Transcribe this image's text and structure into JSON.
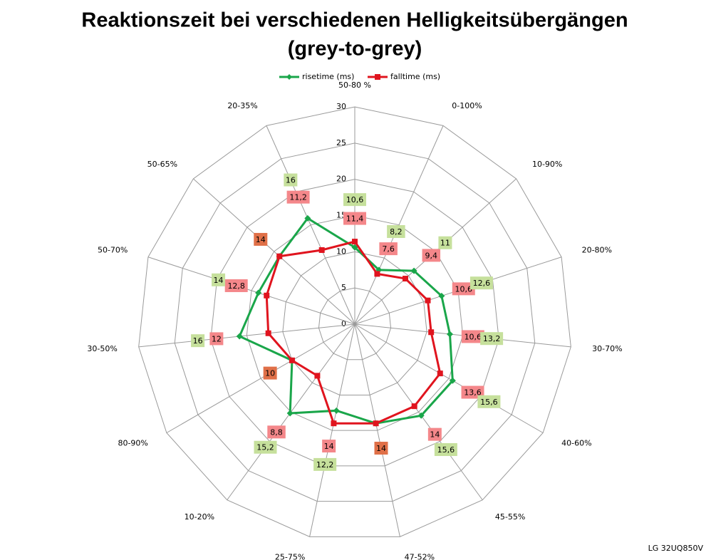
{
  "chart_data": {
    "type": "radar",
    "title": [
      "Reaktionszeit bei verschiedenen Helligkeitsübergängen",
      "(grey-to-grey)"
    ],
    "source": "LG 32UQ850V",
    "categories": [
      "50-80 %",
      "0-100%",
      "10-90%",
      "20-80%",
      "30-70%",
      "40-60%",
      "45-55%",
      "47-52%",
      "25-75%",
      "10-20%",
      "80-90%",
      "30-50%",
      "50-70%",
      "50-65%",
      "20-35%"
    ],
    "ylim": [
      0,
      30
    ],
    "yticks": [
      0,
      5,
      10,
      15,
      20,
      25,
      30
    ],
    "grid": true,
    "legend": "top",
    "series": [
      {
        "name": "risetime (ms)",
        "color": "#1aa64a",
        "marker": "diamond",
        "label_color": "#c6e09c",
        "values": [
          10.6,
          8.2,
          11,
          12.6,
          13.2,
          15.6,
          15.6,
          14,
          12.2,
          15.2,
          10,
          16,
          14,
          14,
          16
        ],
        "value_labels": [
          "10,6",
          "8,2",
          "11",
          "12,6",
          "13,2",
          "15,6",
          "15,6",
          "14",
          "12,2",
          "15,2",
          "10",
          "16",
          "14",
          "14",
          "16"
        ]
      },
      {
        "name": "falltime (ms)",
        "color": "#e0141e",
        "marker": "square",
        "label_color": "#f4878a",
        "values": [
          11.4,
          7.6,
          9.4,
          10.6,
          10.6,
          13.6,
          14,
          14,
          14,
          8.8,
          10,
          12,
          12.8,
          14,
          11.2
        ],
        "value_labels": [
          "11,4",
          "7,6",
          "9,4",
          "10,6",
          "10,6",
          "13,6",
          "14",
          "14",
          "14",
          "8,8",
          "10",
          "12",
          "12,8",
          "14",
          "11,2"
        ]
      }
    ],
    "equal_label_color": "#e07048"
  }
}
